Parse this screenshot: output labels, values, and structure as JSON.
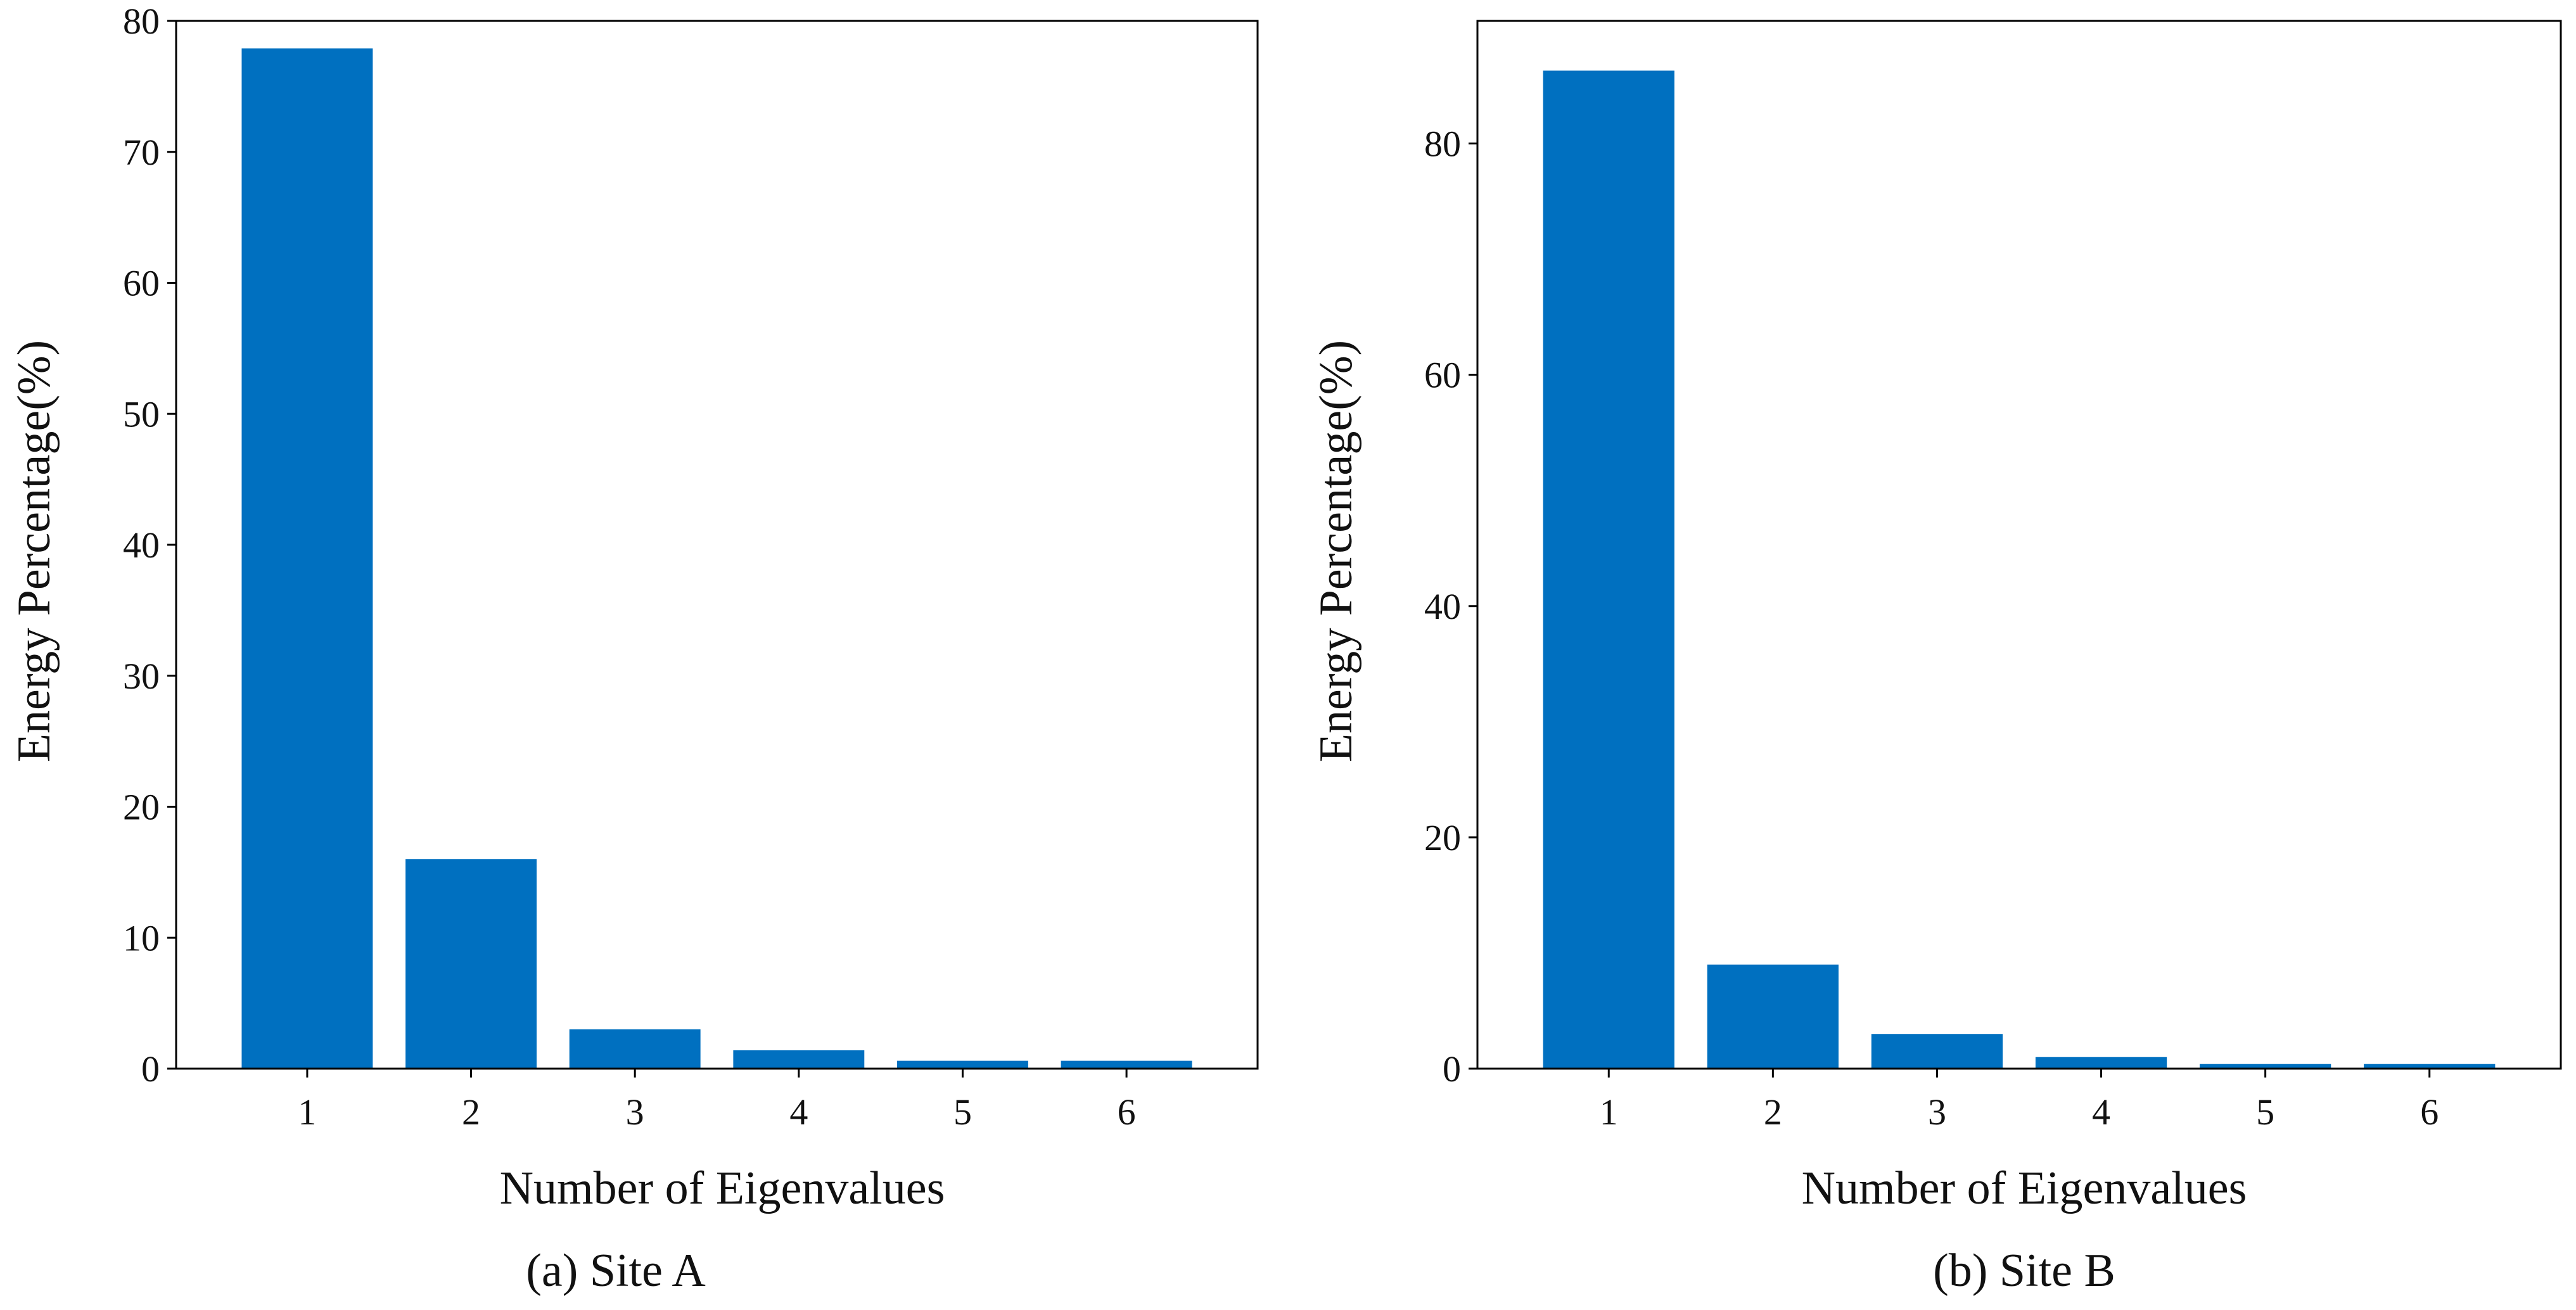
{
  "chart_data": [
    {
      "type": "bar",
      "caption": "(a) Site A",
      "xlabel": "Number of Eigenvalues",
      "ylabel": "Energy Percentage(%)",
      "categories": [
        "1",
        "2",
        "3",
        "4",
        "5",
        "6"
      ],
      "values": [
        77.9,
        16.0,
        3.0,
        1.4,
        0.6,
        0.6
      ],
      "ylim": [
        0,
        80
      ],
      "yticks": [
        0,
        10,
        20,
        30,
        40,
        50,
        60,
        70,
        80
      ],
      "bar_color": "#0070C0",
      "grid": false
    },
    {
      "type": "bar",
      "caption": "(b) Site B",
      "xlabel": "Number of Eigenvalues",
      "ylabel": "Energy Percentage(%)",
      "categories": [
        "1",
        "2",
        "3",
        "4",
        "5",
        "6"
      ],
      "values": [
        86.3,
        9.0,
        3.0,
        1.0,
        0.4,
        0.4
      ],
      "ylim": [
        0,
        90.6
      ],
      "yticks": [
        0,
        20,
        40,
        60,
        80
      ],
      "bar_color": "#0070C0",
      "grid": false
    }
  ]
}
